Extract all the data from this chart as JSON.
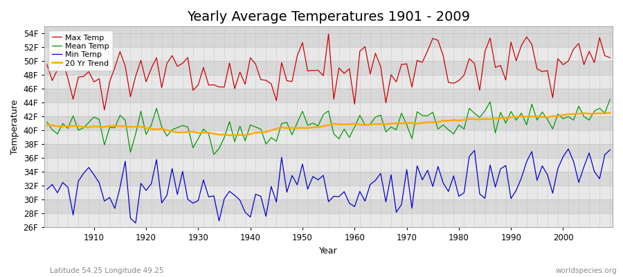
{
  "title": "Yearly Average Temperatures 1901 - 2009",
  "xlabel": "Year",
  "ylabel": "Temperature",
  "subtitle_left": "Latitude 54.25 Longitude 49.25",
  "subtitle_right": "worldspecies.org",
  "legend_labels": [
    "Max Temp",
    "Mean Temp",
    "Min Temp",
    "20 Yr Trend"
  ],
  "line_colors": [
    "#cc0000",
    "#009900",
    "#0000cc",
    "#ffaa00"
  ],
  "ylim": [
    26,
    55
  ],
  "yticks": [
    26,
    28,
    30,
    32,
    34,
    36,
    38,
    40,
    42,
    44,
    46,
    48,
    50,
    52,
    54
  ],
  "ytick_labels": [
    "26F",
    "28F",
    "30F",
    "32F",
    "34F",
    "36F",
    "38F",
    "40F",
    "42F",
    "44F",
    "46F",
    "48F",
    "50F",
    "52F",
    "54F"
  ],
  "start_year": 1901,
  "end_year": 2009,
  "fig_bg_color": "#ffffff",
  "plot_bg_color": "#d8d8d8",
  "band_color_light": "#e8e8e8",
  "grid_v_color": "#bbbbbb",
  "title_fontsize": 14,
  "axis_fontsize": 9,
  "tick_fontsize": 8.5,
  "subtitle_fontsize": 7.5
}
